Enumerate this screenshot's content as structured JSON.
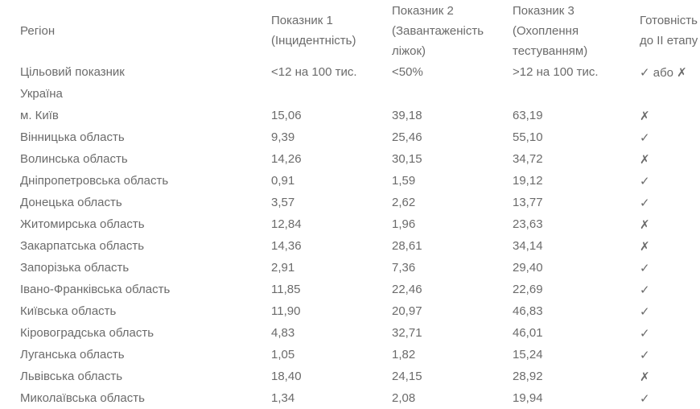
{
  "page": {
    "background_color": "#ffffff",
    "text_color": "#6b6b6b"
  },
  "table": {
    "header": {
      "region": "Регіон",
      "indicator1": [
        "Показник 1",
        "(Інцидентність)"
      ],
      "indicator2": [
        "Показник 2",
        "(Завантаженість",
        "ліжок)"
      ],
      "indicator3": [
        "Показник 3",
        "(Охоплення",
        "тестуванням)"
      ],
      "readiness": [
        "Готовність",
        "до II етапу"
      ]
    },
    "target_row": {
      "region": "Цільовий показник",
      "indicator1": "<12 на 100 тис.",
      "indicator2": "<50%",
      "indicator3": ">12 на 100 тис.",
      "readiness": "✓ або ✗"
    },
    "country_row": {
      "region": "Україна",
      "indicator1": "",
      "indicator2": "",
      "indicator3": "",
      "readiness": ""
    },
    "check_glyph": "✓",
    "cross_glyph": "✗",
    "rows": [
      {
        "region": "м. Київ",
        "indicator1": "15,06",
        "indicator2": "39,18",
        "indicator3": "63,19",
        "readiness": "✗"
      },
      {
        "region": "Вінницька область",
        "indicator1": "9,39",
        "indicator2": "25,46",
        "indicator3": "55,10",
        "readiness": "✓"
      },
      {
        "region": "Волинська область",
        "indicator1": "14,26",
        "indicator2": "30,15",
        "indicator3": "34,72",
        "readiness": "✗"
      },
      {
        "region": "Дніпропетровська область",
        "indicator1": "0,91",
        "indicator2": "1,59",
        "indicator3": "19,12",
        "readiness": "✓"
      },
      {
        "region": "Донецька область",
        "indicator1": "3,57",
        "indicator2": "2,62",
        "indicator3": "13,77",
        "readiness": "✓"
      },
      {
        "region": "Житомирська область",
        "indicator1": "12,84",
        "indicator2": "1,96",
        "indicator3": "23,63",
        "readiness": "✗"
      },
      {
        "region": "Закарпатська область",
        "indicator1": "14,36",
        "indicator2": "28,61",
        "indicator3": "34,14",
        "readiness": "✗"
      },
      {
        "region": "Запорізька область",
        "indicator1": "2,91",
        "indicator2": "7,36",
        "indicator3": "29,40",
        "readiness": "✓"
      },
      {
        "region": "Івано-Франківська область",
        "indicator1": "11,85",
        "indicator2": "22,46",
        "indicator3": "22,69",
        "readiness": "✓"
      },
      {
        "region": "Київська область",
        "indicator1": "11,90",
        "indicator2": "20,97",
        "indicator3": "46,83",
        "readiness": "✓"
      },
      {
        "region": "Кіровоградська область",
        "indicator1": "4,83",
        "indicator2": "32,71",
        "indicator3": "46,01",
        "readiness": "✓"
      },
      {
        "region": "Луганська область",
        "indicator1": "1,05",
        "indicator2": "1,82",
        "indicator3": "15,24",
        "readiness": "✓"
      },
      {
        "region": "Львівська область",
        "indicator1": "18,40",
        "indicator2": "24,15",
        "indicator3": "28,92",
        "readiness": "✗"
      },
      {
        "region": "Миколаївська область",
        "indicator1": "1,34",
        "indicator2": "2,08",
        "indicator3": "19,94",
        "readiness": "✓"
      }
    ]
  }
}
